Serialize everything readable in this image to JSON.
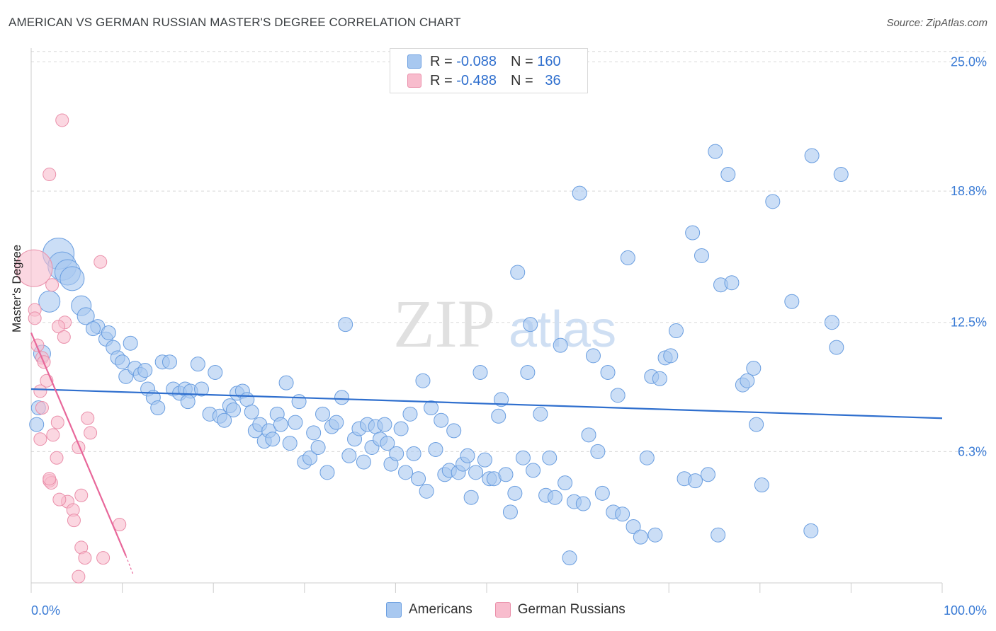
{
  "title": "AMERICAN VS GERMAN RUSSIAN MASTER'S DEGREE CORRELATION CHART",
  "source": "Source: ZipAtlas.com",
  "watermark": {
    "zip": "ZIP",
    "atlas": "atlas"
  },
  "legend": {
    "rows": [
      {
        "r_label": "R =",
        "r_value": "-0.088",
        "n_label": "N =",
        "n_value": "160"
      },
      {
        "r_label": "R =",
        "r_value": "-0.488",
        "n_label": "N =",
        "n_value": "36"
      }
    ]
  },
  "bottom_legend": [
    "Americans",
    "German Russians"
  ],
  "colors": {
    "americans_fill": "#a8c8f0",
    "americans_stroke": "#6a9ee0",
    "americans_line": "#2f6fce",
    "german_fill": "#f8bccd",
    "german_stroke": "#ea8faa",
    "german_line": "#e8679a",
    "axis_text": "#3a7bd5",
    "grid": "#d8d8d8"
  },
  "chart_data": {
    "type": "scatter",
    "title": "AMERICAN VS GERMAN RUSSIAN MASTER'S DEGREE CORRELATION CHART",
    "ylabel": "Master's Degree",
    "xlabel": "",
    "xlim": [
      0,
      100
    ],
    "ylim": [
      0,
      26.0
    ],
    "x_tick_labels": [
      "0.0%",
      "100.0%"
    ],
    "y_ticks": [
      6.3,
      12.5,
      18.8,
      25.0
    ],
    "y_tick_labels": [
      "6.3%",
      "12.5%",
      "18.8%",
      "25.0%"
    ],
    "series": [
      {
        "name": "Americans",
        "r": -0.088,
        "n": 160,
        "trend": [
          [
            0,
            9.3
          ],
          [
            100,
            7.9
          ]
        ],
        "points": [
          [
            3.0,
            15.8,
            2.2
          ],
          [
            3.4,
            15.2,
            2.0
          ],
          [
            4.0,
            14.9,
            1.8
          ],
          [
            4.5,
            14.6,
            1.7
          ],
          [
            2.0,
            13.5,
            1.5
          ],
          [
            5.5,
            13.3,
            1.4
          ],
          [
            6.0,
            12.8,
            1.2
          ],
          [
            7.3,
            12.3,
            1.0
          ],
          [
            6.8,
            12.2,
            1.0
          ],
          [
            8.2,
            11.7,
            1.0
          ],
          [
            8.5,
            12.0,
            1.0
          ],
          [
            9.0,
            11.3,
            1.0
          ],
          [
            1.2,
            11.0,
            1.2
          ],
          [
            0.8,
            8.4,
            1.0
          ],
          [
            0.6,
            7.6,
            1.0
          ],
          [
            9.5,
            10.8,
            1.0
          ],
          [
            10.0,
            10.6,
            1.0
          ],
          [
            10.4,
            9.9,
            1.0
          ],
          [
            10.9,
            11.5,
            1.0
          ],
          [
            11.4,
            10.3,
            1.0
          ],
          [
            12.0,
            10.0,
            1.0
          ],
          [
            12.5,
            10.2,
            1.0
          ],
          [
            12.8,
            9.3,
            1.0
          ],
          [
            13.4,
            8.9,
            1.0
          ],
          [
            13.9,
            8.4,
            1.0
          ],
          [
            14.4,
            10.6,
            1.0
          ],
          [
            15.2,
            10.6,
            1.0
          ],
          [
            15.6,
            9.3,
            1.0
          ],
          [
            16.3,
            9.1,
            1.0
          ],
          [
            16.9,
            9.3,
            1.0
          ],
          [
            17.5,
            9.2,
            1.0
          ],
          [
            17.2,
            8.7,
            1.0
          ],
          [
            18.3,
            10.5,
            1.0
          ],
          [
            18.7,
            9.3,
            1.0
          ],
          [
            19.6,
            8.1,
            1.0
          ],
          [
            20.2,
            10.1,
            1.0
          ],
          [
            20.7,
            8.0,
            1.0
          ],
          [
            21.2,
            7.8,
            1.0
          ],
          [
            21.8,
            8.5,
            1.0
          ],
          [
            22.2,
            8.3,
            1.0
          ],
          [
            22.6,
            9.1,
            1.0
          ],
          [
            23.2,
            9.2,
            1.0
          ],
          [
            23.7,
            8.8,
            1.0
          ],
          [
            24.2,
            8.2,
            1.0
          ],
          [
            24.6,
            7.3,
            1.0
          ],
          [
            25.1,
            7.6,
            1.0
          ],
          [
            25.6,
            6.8,
            1.0
          ],
          [
            26.1,
            7.3,
            1.0
          ],
          [
            26.5,
            6.9,
            1.0
          ],
          [
            27.0,
            8.1,
            1.0
          ],
          [
            27.4,
            7.6,
            1.0
          ],
          [
            28.0,
            9.6,
            1.0
          ],
          [
            28.4,
            6.7,
            1.0
          ],
          [
            29.0,
            7.7,
            1.0
          ],
          [
            29.4,
            8.7,
            1.0
          ],
          [
            30.0,
            5.8,
            1.0
          ],
          [
            30.6,
            6.0,
            1.0
          ],
          [
            31.0,
            7.2,
            1.0
          ],
          [
            31.5,
            6.5,
            1.0
          ],
          [
            32.0,
            8.1,
            1.0
          ],
          [
            32.5,
            5.3,
            1.0
          ],
          [
            33.0,
            7.5,
            1.0
          ],
          [
            33.5,
            7.7,
            1.0
          ],
          [
            34.1,
            8.9,
            1.0
          ],
          [
            34.5,
            12.4,
            1.0
          ],
          [
            34.9,
            6.1,
            1.0
          ],
          [
            35.5,
            6.9,
            1.0
          ],
          [
            36.0,
            7.4,
            1.0
          ],
          [
            36.5,
            5.8,
            1.0
          ],
          [
            36.9,
            7.6,
            1.0
          ],
          [
            37.4,
            6.5,
            1.0
          ],
          [
            37.8,
            7.5,
            1.0
          ],
          [
            38.3,
            6.9,
            1.0
          ],
          [
            38.8,
            7.6,
            1.0
          ],
          [
            39.1,
            6.7,
            1.0
          ],
          [
            39.5,
            5.7,
            1.0
          ],
          [
            40.1,
            6.2,
            1.0
          ],
          [
            40.6,
            7.4,
            1.0
          ],
          [
            41.1,
            5.3,
            1.0
          ],
          [
            41.6,
            8.1,
            1.0
          ],
          [
            42.0,
            6.2,
            1.0
          ],
          [
            42.5,
            5.0,
            1.0
          ],
          [
            43.0,
            9.7,
            1.0
          ],
          [
            43.4,
            4.4,
            1.0
          ],
          [
            43.9,
            8.4,
            1.0
          ],
          [
            44.4,
            6.4,
            1.0
          ],
          [
            45.0,
            7.8,
            1.0
          ],
          [
            45.4,
            5.2,
            1.0
          ],
          [
            45.9,
            5.4,
            1.0
          ],
          [
            46.4,
            7.3,
            1.0
          ],
          [
            46.9,
            5.3,
            1.0
          ],
          [
            47.4,
            5.7,
            1.0
          ],
          [
            47.9,
            6.1,
            1.0
          ],
          [
            48.3,
            4.1,
            1.0
          ],
          [
            48.8,
            5.3,
            1.0
          ],
          [
            49.3,
            10.1,
            1.0
          ],
          [
            49.8,
            5.9,
            1.0
          ],
          [
            50.3,
            5.0,
            1.0
          ],
          [
            50.8,
            5.0,
            1.0
          ],
          [
            51.3,
            8.0,
            1.0
          ],
          [
            51.6,
            8.8,
            1.0
          ],
          [
            52.1,
            5.2,
            1.0
          ],
          [
            52.6,
            3.4,
            1.0
          ],
          [
            53.1,
            4.3,
            1.0
          ],
          [
            53.4,
            14.9,
            1.0
          ],
          [
            54.0,
            6.0,
            1.0
          ],
          [
            54.5,
            10.1,
            1.0
          ],
          [
            54.8,
            12.4,
            1.0
          ],
          [
            55.1,
            5.4,
            1.0
          ],
          [
            55.9,
            8.1,
            1.0
          ],
          [
            56.5,
            4.2,
            1.0
          ],
          [
            56.9,
            6.0,
            1.0
          ],
          [
            57.5,
            4.1,
            1.0
          ],
          [
            58.1,
            11.4,
            1.0
          ],
          [
            58.6,
            4.8,
            1.0
          ],
          [
            59.1,
            1.2,
            1.0
          ],
          [
            59.6,
            3.9,
            1.0
          ],
          [
            60.2,
            18.7,
            1.0
          ],
          [
            60.6,
            3.8,
            1.0
          ],
          [
            61.2,
            7.1,
            1.0
          ],
          [
            61.7,
            10.9,
            1.0
          ],
          [
            62.2,
            6.3,
            1.0
          ],
          [
            62.7,
            4.3,
            1.0
          ],
          [
            63.3,
            10.1,
            1.0
          ],
          [
            63.9,
            3.4,
            1.0
          ],
          [
            64.4,
            9.0,
            1.0
          ],
          [
            64.9,
            3.3,
            1.0
          ],
          [
            65.5,
            15.6,
            1.0
          ],
          [
            66.1,
            2.7,
            1.0
          ],
          [
            66.9,
            2.2,
            1.0
          ],
          [
            67.6,
            6.0,
            1.0
          ],
          [
            68.1,
            9.9,
            1.0
          ],
          [
            68.5,
            2.3,
            1.0
          ],
          [
            69.0,
            9.8,
            1.0
          ],
          [
            69.6,
            10.8,
            1.0
          ],
          [
            70.2,
            10.9,
            1.0
          ],
          [
            70.8,
            12.1,
            1.0
          ],
          [
            71.7,
            5.0,
            1.0
          ],
          [
            72.6,
            16.8,
            1.0
          ],
          [
            72.9,
            4.9,
            1.0
          ],
          [
            73.6,
            15.7,
            1.0
          ],
          [
            74.3,
            5.2,
            1.0
          ],
          [
            75.1,
            20.7,
            1.0
          ],
          [
            75.4,
            2.3,
            1.0
          ],
          [
            75.7,
            14.3,
            1.0
          ],
          [
            76.5,
            19.6,
            1.0
          ],
          [
            76.9,
            14.4,
            1.0
          ],
          [
            78.1,
            9.5,
            1.0
          ],
          [
            78.6,
            9.7,
            1.0
          ],
          [
            79.3,
            10.3,
            1.0
          ],
          [
            79.6,
            7.6,
            1.0
          ],
          [
            80.2,
            4.7,
            1.0
          ],
          [
            81.4,
            18.3,
            1.0
          ],
          [
            83.5,
            13.5,
            1.0
          ],
          [
            85.7,
            20.5,
            1.0
          ],
          [
            85.6,
            2.5,
            1.0
          ],
          [
            87.9,
            12.5,
            1.0
          ],
          [
            88.4,
            11.3,
            1.0
          ],
          [
            88.9,
            19.6,
            1.0
          ]
        ]
      },
      {
        "name": "German Russians",
        "r": -0.488,
        "n": 36,
        "trend": [
          [
            0,
            12.0
          ],
          [
            10.4,
            1.3
          ]
        ],
        "trend_dashed": [
          [
            10.4,
            1.3
          ],
          [
            11.2,
            0.4
          ]
        ],
        "points": [
          [
            0.3,
            15.1,
            2.6
          ],
          [
            3.4,
            22.2,
            0.9
          ],
          [
            2.0,
            19.6,
            0.9
          ],
          [
            7.6,
            15.4,
            0.9
          ],
          [
            2.3,
            14.3,
            0.9
          ],
          [
            0.4,
            13.1,
            0.9
          ],
          [
            0.4,
            12.7,
            0.9
          ],
          [
            3.7,
            12.5,
            0.9
          ],
          [
            3.0,
            12.3,
            0.9
          ],
          [
            3.6,
            11.8,
            0.9
          ],
          [
            0.7,
            11.4,
            0.9
          ],
          [
            1.2,
            10.8,
            0.9
          ],
          [
            1.4,
            10.6,
            0.9
          ],
          [
            1.7,
            9.7,
            0.9
          ],
          [
            1.0,
            9.2,
            0.9
          ],
          [
            1.2,
            8.4,
            0.9
          ],
          [
            6.2,
            7.9,
            0.9
          ],
          [
            2.9,
            7.7,
            0.9
          ],
          [
            6.5,
            7.2,
            0.9
          ],
          [
            2.4,
            7.1,
            0.9
          ],
          [
            1.0,
            6.9,
            0.9
          ],
          [
            5.2,
            6.5,
            0.9
          ],
          [
            2.8,
            6.0,
            0.9
          ],
          [
            2.0,
            4.9,
            0.9
          ],
          [
            2.2,
            4.8,
            0.9
          ],
          [
            5.5,
            4.2,
            0.9
          ],
          [
            4.0,
            3.9,
            0.9
          ],
          [
            4.6,
            3.5,
            0.9
          ],
          [
            4.7,
            3.0,
            0.9
          ],
          [
            9.7,
            2.8,
            0.9
          ],
          [
            5.5,
            1.7,
            0.9
          ],
          [
            5.9,
            1.2,
            0.9
          ],
          [
            7.9,
            1.2,
            0.9
          ],
          [
            5.2,
            0.3,
            0.9
          ],
          [
            3.1,
            4.0,
            0.9
          ],
          [
            2.0,
            5.0,
            0.9
          ]
        ]
      }
    ]
  }
}
